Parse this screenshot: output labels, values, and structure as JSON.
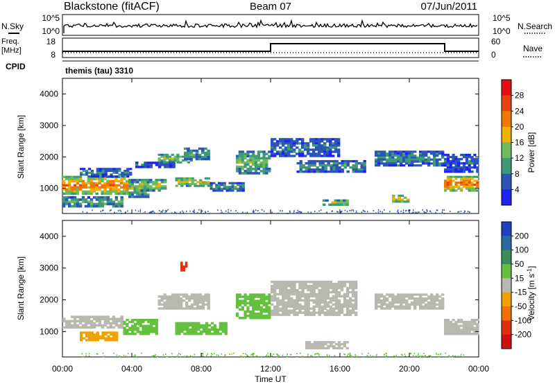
{
  "header": {
    "station": "Blackstone (fitACF)",
    "beam": "Beam 07",
    "date": "07/Jun/2011"
  },
  "noise_panel": {
    "left_label": "N.Sky",
    "left_top": "10^5",
    "left_bottom": "10^0",
    "right_label": "N.Search",
    "right_top": "10^5",
    "right_bottom": "10^0"
  },
  "freq_panel": {
    "left_label_1": "Freq.",
    "left_label_2": "[MHz]",
    "left_top": "18",
    "left_bottom": "8",
    "right_top": "60",
    "right_bottom": "0",
    "right_label": "Nave"
  },
  "cpid": {
    "label": "CPID",
    "program": "themis (tau) 3310"
  },
  "chart_data": [
    {
      "type": "heatmap",
      "name": "power",
      "ylabel": "Slant Range [km]",
      "ylim": [
        200,
        4500
      ],
      "yticks": [
        "1000",
        "2000",
        "3000",
        "4000"
      ],
      "colorbar_label": "Power [dB]",
      "colorbar_ticks": [
        "4",
        "8",
        "12",
        "16",
        "20",
        "24",
        "28"
      ],
      "colorbar_range": [
        0,
        32
      ],
      "colors": [
        "#1f22f0",
        "#2b56b8",
        "#3f9a77",
        "#6dbb5a",
        "#f0b000",
        "#f07800",
        "#e84010",
        "#e01010"
      ],
      "echo_bands": [
        {
          "t0": 0.0,
          "t1": 3.8,
          "r0": 800,
          "r1": 1400,
          "level": 24
        },
        {
          "t0": 0.0,
          "t1": 3.5,
          "r0": 400,
          "r1": 750,
          "level": 12
        },
        {
          "t0": 1.0,
          "t1": 4.0,
          "r0": 1350,
          "r1": 1650,
          "level": 8
        },
        {
          "t0": 3.8,
          "t1": 5.0,
          "r0": 700,
          "r1": 1300,
          "level": 14
        },
        {
          "t0": 4.5,
          "t1": 6.0,
          "r0": 900,
          "r1": 1300,
          "level": 16
        },
        {
          "t0": 4.2,
          "t1": 6.5,
          "r0": 1650,
          "r1": 1850,
          "level": 6
        },
        {
          "t0": 5.5,
          "t1": 7.5,
          "r0": 1800,
          "r1": 2100,
          "level": 16
        },
        {
          "t0": 7.0,
          "t1": 8.5,
          "r0": 1900,
          "r1": 2300,
          "level": 12
        },
        {
          "t0": 6.5,
          "t1": 8.5,
          "r0": 1050,
          "r1": 1350,
          "level": 18
        },
        {
          "t0": 8.5,
          "t1": 10.5,
          "r0": 900,
          "r1": 1200,
          "level": 10
        },
        {
          "t0": 10.0,
          "t1": 12.0,
          "r0": 1450,
          "r1": 2200,
          "level": 14
        },
        {
          "t0": 12.0,
          "t1": 16.0,
          "r0": 2000,
          "r1": 2600,
          "level": 8
        },
        {
          "t0": 13.5,
          "t1": 17.5,
          "r0": 1500,
          "r1": 1900,
          "level": 10
        },
        {
          "t0": 15.0,
          "t1": 16.5,
          "r0": 450,
          "r1": 650,
          "level": 16
        },
        {
          "t0": 19.0,
          "t1": 20.0,
          "r0": 550,
          "r1": 800,
          "level": 20
        },
        {
          "t0": 18.0,
          "t1": 22.0,
          "r0": 1700,
          "r1": 2200,
          "level": 10
        },
        {
          "t0": 22.0,
          "t1": 24.0,
          "r0": 900,
          "r1": 1400,
          "level": 24
        },
        {
          "t0": 22.0,
          "t1": 24.0,
          "r0": 1500,
          "r1": 2100,
          "level": 6
        }
      ]
    },
    {
      "type": "heatmap",
      "name": "velocity",
      "ylabel": "Slant Range [km]",
      "ylim": [
        200,
        4500
      ],
      "yticks": [
        "1000",
        "2000",
        "3000",
        "4000"
      ],
      "colorbar_label": "Velocity [m s^-1]",
      "colorbar_ticks": [
        "200",
        "100",
        "50",
        "15",
        "-15",
        "-50",
        "-100",
        "-200"
      ],
      "colors": [
        "#2040c0",
        "#2a6aa0",
        "#3a8a5a",
        "#66c040",
        "#b8b8b0",
        "#f0a000",
        "#f07000",
        "#e03010",
        "#d01010"
      ],
      "echo_bands": [
        {
          "t0": 0.0,
          "t1": 3.5,
          "r0": 1100,
          "r1": 1500,
          "level": 0
        },
        {
          "t0": 1.0,
          "t1": 3.2,
          "r0": 700,
          "r1": 1000,
          "level": -40
        },
        {
          "t0": 3.5,
          "t1": 5.5,
          "r0": 900,
          "r1": 1400,
          "level": 20
        },
        {
          "t0": 5.5,
          "t1": 8.5,
          "r0": 1700,
          "r1": 2200,
          "level": 0
        },
        {
          "t0": 6.5,
          "t1": 9.5,
          "r0": 900,
          "r1": 1300,
          "level": 40
        },
        {
          "t0": 10.0,
          "t1": 12.0,
          "r0": 1400,
          "r1": 2200,
          "level": 20
        },
        {
          "t0": 12.0,
          "t1": 17.0,
          "r0": 1500,
          "r1": 2600,
          "level": 0
        },
        {
          "t0": 14.0,
          "t1": 16.5,
          "r0": 450,
          "r1": 700,
          "level": 0
        },
        {
          "t0": 18.0,
          "t1": 22.0,
          "r0": 1700,
          "r1": 2200,
          "level": 0
        },
        {
          "t0": 22.0,
          "t1": 24.0,
          "r0": 900,
          "r1": 1400,
          "level": 0
        },
        {
          "t0": 6.8,
          "t1": 7.2,
          "r0": 2900,
          "r1": 3200,
          "level": -150
        }
      ]
    }
  ],
  "time_axis": {
    "label": "Time UT",
    "range_hours": [
      0,
      24
    ],
    "ticks": [
      "00:00",
      "04:00",
      "08:00",
      "12:00",
      "16:00",
      "20:00",
      "00:00"
    ]
  }
}
